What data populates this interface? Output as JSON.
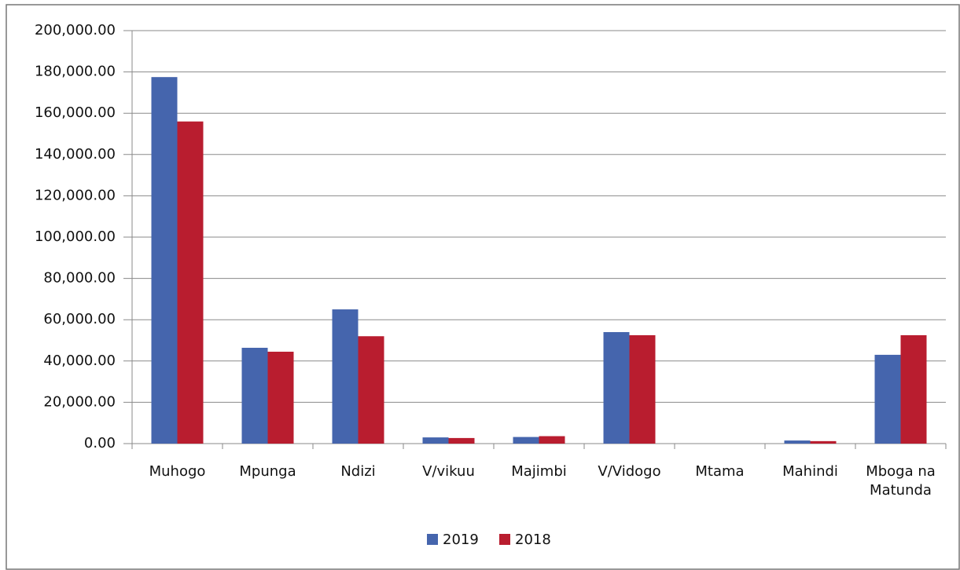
{
  "chart_data": {
    "type": "bar",
    "categories": [
      "Muhogo",
      "Mpunga",
      "Ndizi",
      "V/vikuu",
      "Majimbi",
      "V/Vidogo",
      "Mtama",
      "Mahindi",
      "Mboga na Matunda"
    ],
    "series": [
      {
        "name": "2019",
        "color": "#4565ad",
        "values": [
          177500,
          46400,
          65000,
          3000,
          3200,
          54000,
          0,
          1500,
          43000
        ]
      },
      {
        "name": "2018",
        "color": "#b91d2f",
        "values": [
          156000,
          44500,
          52000,
          2700,
          3600,
          52500,
          0,
          1200,
          52500
        ]
      }
    ],
    "ylim": [
      0,
      200000
    ],
    "yticks": [
      {
        "value": 0,
        "label": "0.00"
      },
      {
        "value": 20000,
        "label": "20,000.00"
      },
      {
        "value": 40000,
        "label": "40,000.00"
      },
      {
        "value": 60000,
        "label": "60,000.00"
      },
      {
        "value": 80000,
        "label": "80,000.00"
      },
      {
        "value": 100000,
        "label": "100,000.00"
      },
      {
        "value": 120000,
        "label": "120,000.00"
      },
      {
        "value": 140000,
        "label": "140,000.00"
      },
      {
        "value": 160000,
        "label": "160,000.00"
      },
      {
        "value": 180000,
        "label": "180,000.00"
      },
      {
        "value": 200000,
        "label": "200,000.00"
      }
    ],
    "grid": true,
    "legend": "bottom"
  }
}
